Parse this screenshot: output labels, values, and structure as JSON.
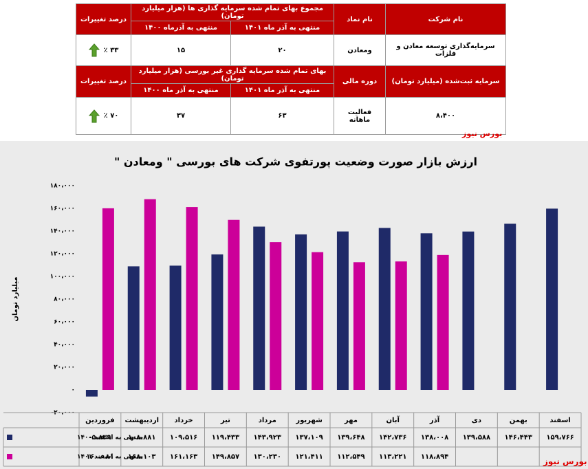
{
  "table": {
    "header_1": {
      "company": "نام شرکت",
      "symbol": "نام نماد",
      "group": "مجموع بهای تمام شده سرمایه گذاری ها (هزار میلیارد تومان)",
      "col_1401": "منتهی به آذر ماه ۱۴۰۱",
      "col_1400": "منتهی به آذرماه ۱۴۰۰",
      "change": "درصد تغییرات"
    },
    "row_1": {
      "company": "سرمایه‌گذاری توسعه معادن و فلزات",
      "symbol": "ومعادن",
      "v1401": "۲۰",
      "v1400": "۱۵",
      "change": "۳۳ ٪"
    },
    "header_2": {
      "capital": "سرمایه ثبت‌شده (میلیارد تومان)",
      "period": "دوره مالی",
      "group": "بهای تمام شده سرمایه گذاری غیر بورسی (هزار میلیارد تومان)",
      "col_1401": "منتهی به آذر ماه ۱۴۰۱",
      "col_1400": "منتهی به آذر ماه ۱۴۰۰",
      "change": "درصد تغییرات"
    },
    "row_2": {
      "capital": "۸،۴۰۰",
      "period": "فعالیت ماهانه",
      "v1401": "۶۳",
      "v1400": "۳۷",
      "change": "۷۰ ٪"
    }
  },
  "watermarks": [
    "بورس نیوز",
    "بورس نیوز"
  ],
  "chart_data": {
    "type": "bar",
    "title": "ارزش بازار صورت وضعیت پورتفوی شرکت های بورسی \" ومعادن \"",
    "y_label": "میلیارد تومان",
    "categories": [
      "فروردین",
      "اردیبهشت",
      "خرداد",
      "تیر",
      "مرداد",
      "شهریور",
      "مهر",
      "آبان",
      "آذر",
      "دی",
      "بهمن",
      "اسفند"
    ],
    "series": [
      {
        "name": "منتهی به اسفند ۱۴۰۰",
        "color": "#1f2a68",
        "values": [
          -5839,
          108881,
          109516,
          119433,
          143923,
          137109,
          139648,
          142736,
          138008,
          139588,
          146443,
          159766
        ],
        "value_labels": [
          "-۵،۸۳۹",
          "۱۰۸،۸۸۱",
          "۱۰۹،۵۱۶",
          "۱۱۹،۴۳۳",
          "۱۴۳،۹۲۳",
          "۱۳۷،۱۰۹",
          "۱۳۹،۶۴۸",
          "۱۴۲،۷۳۶",
          "۱۳۸،۰۰۸",
          "۱۳۹،۵۸۸",
          "۱۴۶،۴۴۳",
          "۱۵۹،۷۶۶"
        ]
      },
      {
        "name": "منتهی به اسفند ۱۴۰۱",
        "color": "#cc0099",
        "values": [
          160081,
          168103,
          161163,
          149857,
          130230,
          121411,
          112549,
          113221,
          118894,
          null,
          null,
          null
        ],
        "value_labels": [
          "۱۶۰،۰۸۱",
          "۱۶۸،۱۰۳",
          "۱۶۱،۱۶۳",
          "۱۴۹،۸۵۷",
          "۱۳۰،۲۳۰",
          "۱۲۱،۴۱۱",
          "۱۱۲،۵۴۹",
          "۱۱۳،۲۲۱",
          "۱۱۸،۸۹۴",
          null,
          null,
          null
        ]
      }
    ],
    "ylim": [
      -20000,
      180000
    ],
    "yticks": [
      {
        "value": -20000,
        "label": "-۲۰،۰۰۰"
      },
      {
        "value": 0,
        "label": "۰"
      },
      {
        "value": 20000,
        "label": "۲۰،۰۰۰"
      },
      {
        "value": 40000,
        "label": "۴۰،۰۰۰"
      },
      {
        "value": 60000,
        "label": "۶۰،۰۰۰"
      },
      {
        "value": 80000,
        "label": "۸۰،۰۰۰"
      },
      {
        "value": 100000,
        "label": "۱۰۰،۰۰۰"
      },
      {
        "value": 120000,
        "label": "۱۲۰،۰۰۰"
      },
      {
        "value": 140000,
        "label": "۱۴۰،۰۰۰"
      },
      {
        "value": 160000,
        "label": "۱۶۰،۰۰۰"
      },
      {
        "value": 180000,
        "label": "۱۸۰،۰۰۰"
      }
    ],
    "grid": false
  }
}
